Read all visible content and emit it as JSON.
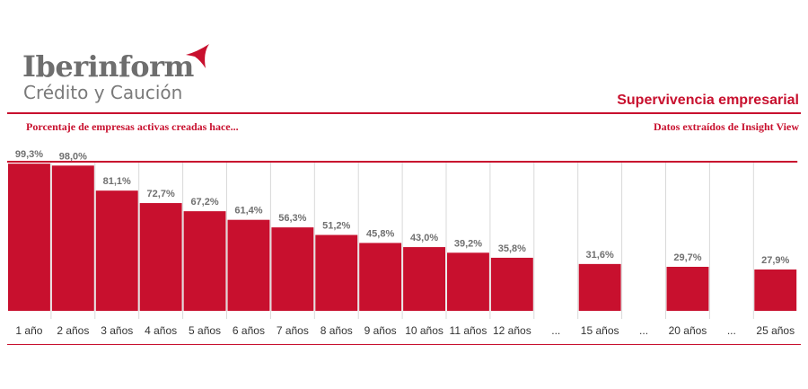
{
  "brand": {
    "name": "Iberinform",
    "tagline": "Crédito y Caución",
    "accent_color": "#c8102e",
    "logo_icon": "red-swoosh-icon"
  },
  "header": {
    "title": "Supervivencia empresarial",
    "subtitle_left": "Porcentaje de empresas activas creadas hace...",
    "subtitle_right": "Datos extraídos de Insight View"
  },
  "chart_data": {
    "type": "bar",
    "title": "Supervivencia empresarial",
    "categories": [
      "1 año",
      "2 años",
      "3 años",
      "4 años",
      "5 años",
      "6 años",
      "7 años",
      "8 años",
      "9 años",
      "10 años",
      "11 años",
      "12 años",
      "...",
      "15 años",
      "...",
      "20 años",
      "...",
      "25 años"
    ],
    "values": [
      99.3,
      98.0,
      81.1,
      72.7,
      67.2,
      61.4,
      56.3,
      51.2,
      45.8,
      43.0,
      39.2,
      35.8,
      null,
      31.6,
      null,
      29.7,
      null,
      27.9
    ],
    "data_labels": [
      "99,3%",
      "98,0%",
      "81,1%",
      "72,7%",
      "67,2%",
      "61,4%",
      "56,3%",
      "51,2%",
      "45,8%",
      "43,0%",
      "39,2%",
      "35,8%",
      "",
      "31,6%",
      "",
      "29,7%",
      "",
      "27,9%"
    ],
    "ylim": [
      0,
      100
    ],
    "unit": "%",
    "bar_color": "#c8102e",
    "label_color": "#707070",
    "grid": false,
    "column_separators": true,
    "legend": "none"
  }
}
